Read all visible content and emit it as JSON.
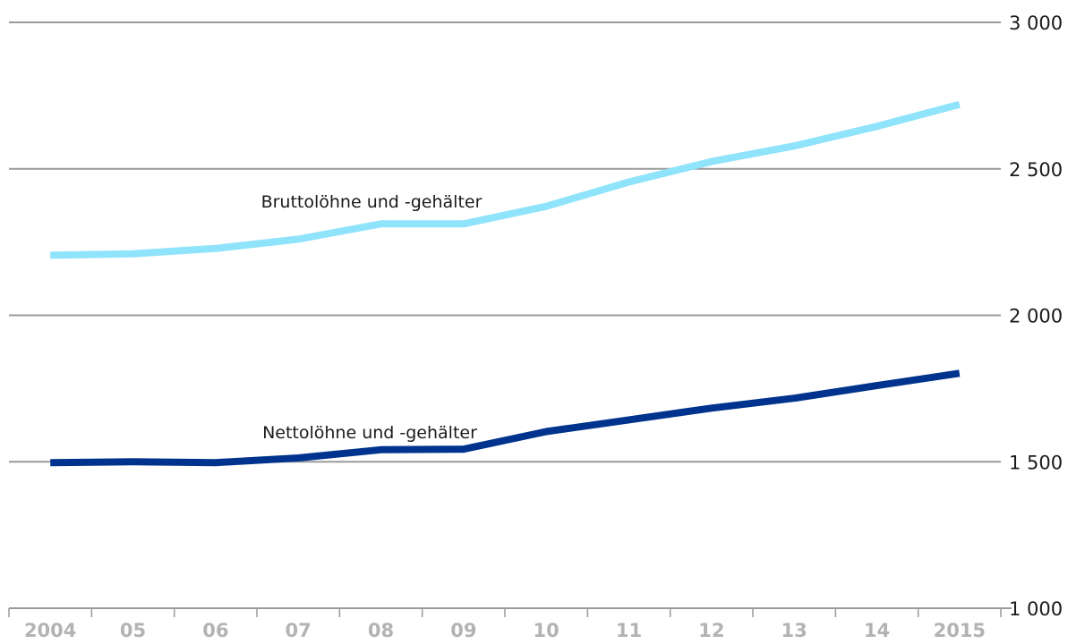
{
  "chart_data": {
    "type": "line",
    "x": [
      "2004",
      "05",
      "06",
      "07",
      "08",
      "09",
      "10",
      "11",
      "12",
      "13",
      "14",
      "2015"
    ],
    "ylim": [
      1000,
      3000
    ],
    "yticks": [
      "1 000",
      "1 500",
      "2 000",
      "2 500",
      "3 000"
    ],
    "ytick_values": [
      1000,
      1500,
      2000,
      2500,
      3000
    ],
    "grid": true,
    "series": [
      {
        "name": "Bruttolöhne und -gehälter",
        "color": "#8fe3fb",
        "values": [
          2205,
          2210,
          2228,
          2260,
          2312,
          2312,
          2372,
          2455,
          2525,
          2578,
          2645,
          2720
        ]
      },
      {
        "name": "Nettolöhne und -gehälter",
        "color": "#00338d",
        "values": [
          1497,
          1500,
          1497,
          1513,
          1541,
          1543,
          1603,
          1643,
          1683,
          1717,
          1760,
          1802
        ]
      }
    ]
  }
}
